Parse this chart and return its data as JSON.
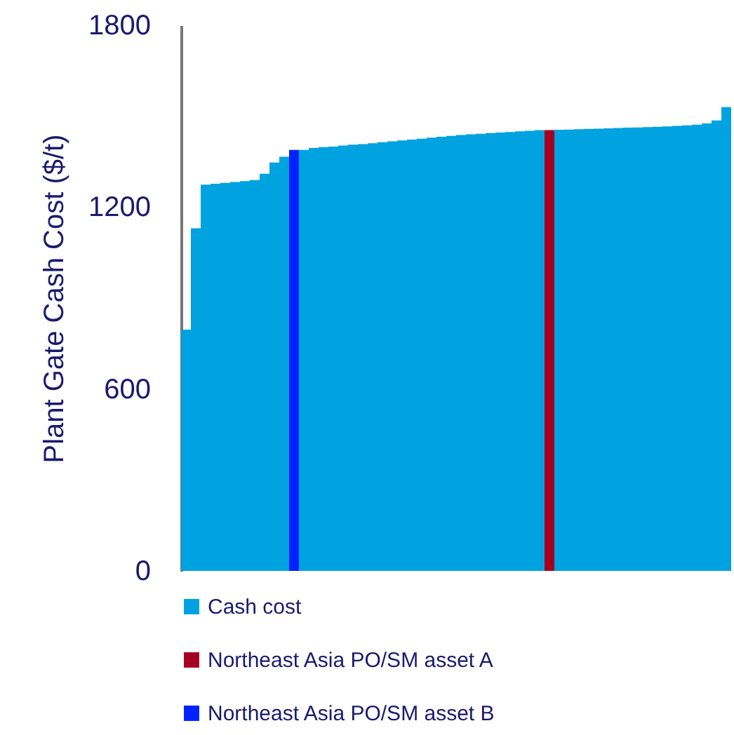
{
  "chart_data": {
    "type": "bar",
    "ylabel": "Plant Gate Cash Cost ($/t)",
    "stacked": true,
    "categories": [
      null,
      null,
      null,
      null,
      null,
      null,
      null,
      null,
      null,
      null,
      null,
      null,
      null,
      null,
      null,
      null,
      null,
      null,
      null,
      null,
      null,
      null,
      null,
      null,
      null,
      null,
      null,
      null,
      null,
      null,
      null,
      null,
      null,
      null,
      null,
      null,
      null,
      null,
      null,
      null,
      null,
      null,
      null,
      null,
      null,
      null,
      null,
      null,
      null,
      null,
      null,
      null,
      null,
      null,
      null,
      null
    ],
    "series": [
      {
        "name": "Cash cost",
        "color": "#00a2e0",
        "values": [
          796,
          1130,
          1274,
          1277,
          1280,
          1283,
          1286,
          1289,
          1310,
          1347,
          1366,
          0,
          1389,
          1395,
          1398,
          1400,
          1403,
          1406,
          1408,
          1411,
          1414,
          1417,
          1420,
          1423,
          1426,
          1429,
          1432,
          1435,
          1438,
          1440,
          1442,
          1444,
          1446,
          1448,
          1450,
          1452,
          1454,
          0,
          1455,
          1456,
          1457,
          1458,
          1459,
          1460,
          1461,
          1462,
          1463,
          1464,
          1465,
          1466,
          1468,
          1470,
          1472,
          1476,
          1486,
          1530
        ]
      },
      {
        "name": "Northeast Asia PO/SM asset A",
        "color": "#a50021",
        "values": [
          0,
          0,
          0,
          0,
          0,
          0,
          0,
          0,
          0,
          0,
          0,
          0,
          0,
          0,
          0,
          0,
          0,
          0,
          0,
          0,
          0,
          0,
          0,
          0,
          0,
          0,
          0,
          0,
          0,
          0,
          0,
          0,
          0,
          0,
          0,
          0,
          0,
          1454,
          0,
          0,
          0,
          0,
          0,
          0,
          0,
          0,
          0,
          0,
          0,
          0,
          0,
          0,
          0,
          0,
          0,
          0
        ]
      },
      {
        "name": "Northeast Asia PO/SM asset B",
        "color": "#0022ff",
        "values": [
          0,
          0,
          0,
          0,
          0,
          0,
          0,
          0,
          0,
          0,
          0,
          1389,
          0,
          0,
          0,
          0,
          0,
          0,
          0,
          0,
          0,
          0,
          0,
          0,
          0,
          0,
          0,
          0,
          0,
          0,
          0,
          0,
          0,
          0,
          0,
          0,
          0,
          0,
          0,
          0,
          0,
          0,
          0,
          0,
          0,
          0,
          0,
          0,
          0,
          0,
          0,
          0,
          0,
          0,
          0,
          0
        ]
      }
    ],
    "ylim": [
      0,
      1800
    ],
    "yticks": [
      0,
      600,
      1200,
      1800
    ],
    "grid": false,
    "legend": "bottom left"
  }
}
